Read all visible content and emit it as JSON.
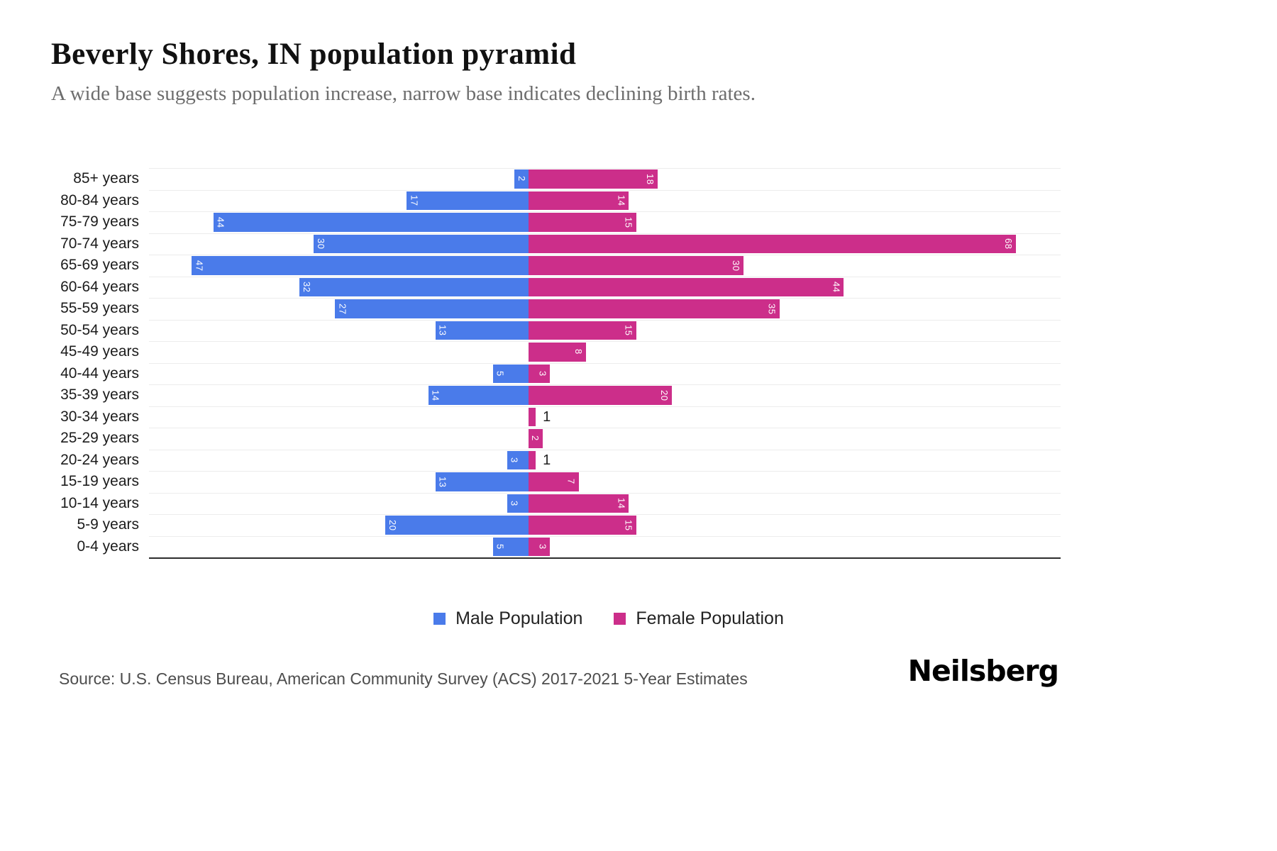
{
  "header": {
    "title": "Beverly Shores, IN population pyramid",
    "subtitle": "A wide base suggests population increase, narrow base indicates declining birth rates."
  },
  "chart_data": {
    "type": "bar",
    "variant": "population-pyramid",
    "orientation": "horizontal",
    "categories": [
      "85+ years",
      "80-84 years",
      "75-79 years",
      "70-74 years",
      "65-69 years",
      "60-64 years",
      "55-59 years",
      "50-54 years",
      "45-49 years",
      "40-44 years",
      "35-39 years",
      "30-34 years",
      "25-29 years",
      "20-24 years",
      "15-19 years",
      "10-14 years",
      "5-9 years",
      "0-4 years"
    ],
    "series": [
      {
        "name": "Male Population",
        "color": "#4a7bea",
        "direction": "left",
        "values": [
          2,
          17,
          44,
          30,
          47,
          32,
          27,
          13,
          0,
          5,
          14,
          0,
          0,
          3,
          13,
          3,
          20,
          5
        ]
      },
      {
        "name": "Female Population",
        "color": "#cc2e8a",
        "direction": "right",
        "values": [
          18,
          14,
          15,
          68,
          30,
          44,
          35,
          15,
          8,
          3,
          20,
          1,
          2,
          1,
          7,
          14,
          15,
          3
        ]
      }
    ],
    "value_axis_max": 68,
    "grid": true,
    "legend_position": "bottom",
    "bar_label_color_inside": "#ffffff",
    "bar_label_color_outside": "#222222"
  },
  "footer": {
    "source": "Source: U.S. Census Bureau, American Community Survey (ACS) 2017-2021 5-Year Estimates",
    "brand": "Neilsberg"
  }
}
